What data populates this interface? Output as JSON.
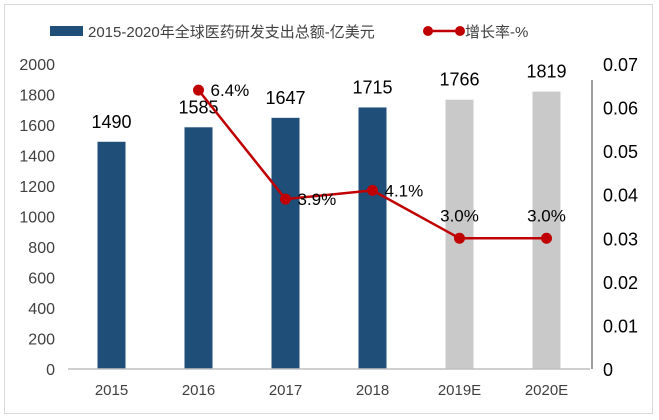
{
  "chart_data": {
    "type": "bar",
    "categories": [
      "2015",
      "2016",
      "2017",
      "2018",
      "2019E",
      "2020E"
    ],
    "series": [
      {
        "name": "2015-2020年全球医药研发支出总额-亿美元",
        "type": "bar",
        "axis": "left",
        "values": [
          1490,
          1585,
          1647,
          1715,
          1766,
          1819
        ],
        "data_labels": [
          "1490",
          "1585",
          "1647",
          "1715",
          "1766",
          "1819"
        ],
        "colors": [
          "#1f4e79",
          "#1f4e79",
          "#1f4e79",
          "#1f4e79",
          "#c9c9c9",
          "#c9c9c9"
        ]
      },
      {
        "name": "增长率-%",
        "type": "line",
        "axis": "right",
        "values": [
          null,
          0.064,
          0.039,
          0.041,
          0.03,
          0.03
        ],
        "data_labels": [
          "",
          "6.4%",
          "3.9%",
          "4.1%",
          "3.0%",
          "3.0%"
        ],
        "color": "#c00000"
      }
    ],
    "left_axis": {
      "ylim": [
        0,
        2000
      ],
      "ticks": [
        "0",
        "200",
        "400",
        "600",
        "800",
        "1000",
        "1200",
        "1400",
        "1600",
        "1800",
        "2000"
      ]
    },
    "right_axis": {
      "ylim": [
        0,
        0.07
      ],
      "ticks": [
        "0",
        "0.01",
        "0.02",
        "0.03",
        "0.04",
        "0.05",
        "0.06",
        "0.07"
      ]
    },
    "legend_position": "top",
    "grid": false
  }
}
